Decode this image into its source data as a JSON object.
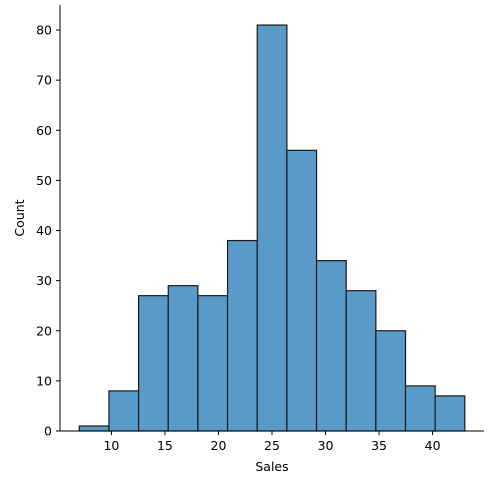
{
  "chart_data": {
    "type": "bar",
    "title": "",
    "xlabel": "Sales",
    "ylabel": "Count",
    "bin_edges": [
      7.0,
      9.77,
      12.54,
      15.31,
      18.08,
      20.85,
      23.62,
      26.39,
      29.16,
      31.93,
      34.7,
      37.47,
      40.24,
      43.01
    ],
    "values": [
      1,
      8,
      27,
      29,
      27,
      38,
      81,
      56,
      34,
      28,
      20,
      9,
      7
    ],
    "xlim": [
      5.2,
      44.8
    ],
    "ylim": [
      0,
      85
    ],
    "xticks": [
      10,
      15,
      20,
      25,
      30,
      35,
      40
    ],
    "yticks": [
      0,
      10,
      20,
      30,
      40,
      50,
      60,
      70,
      80
    ],
    "bar_color": "#5a9ac9",
    "edge_color": "#1a1a1a",
    "grid": false,
    "legend": "none"
  }
}
